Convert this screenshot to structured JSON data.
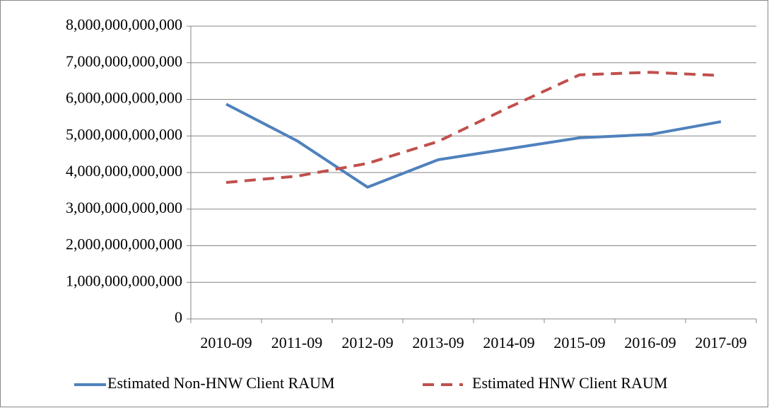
{
  "chart_data": {
    "type": "line",
    "categories": [
      "2010-09",
      "2011-09",
      "2012-09",
      "2013-09",
      "2014-09",
      "2015-09",
      "2016-09",
      "2017-09"
    ],
    "series": [
      {
        "name": "Estimated Non-HNW Client RAUM",
        "color": "#4f81bd",
        "dash": false,
        "values": [
          5870000000000,
          4870000000000,
          3600000000000,
          4350000000000,
          4650000000000,
          4950000000000,
          5040000000000,
          5390000000000
        ]
      },
      {
        "name": "Estimated HNW Client RAUM",
        "color": "#c0504d",
        "dash": true,
        "values": [
          3730000000000,
          3900000000000,
          4250000000000,
          4850000000000,
          5780000000000,
          6670000000000,
          6740000000000,
          6650000000000
        ]
      }
    ],
    "ylim": [
      0,
      8000000000000
    ],
    "yticks": [
      0,
      {
        "value": 1000000000000,
        "label": "1,000,000,000,000"
      },
      {
        "value": 2000000000000,
        "label": "2,000,000,000,000"
      },
      {
        "value": 3000000000000,
        "label": "3,000,000,000,000"
      },
      {
        "value": 4000000000000,
        "label": "4,000,000,000,000"
      },
      {
        "value": 5000000000000,
        "label": "5,000,000,000,000"
      },
      {
        "value": 6000000000000,
        "label": "6,000,000,000,000"
      },
      {
        "value": 7000000000000,
        "label": "7,000,000,000,000"
      },
      {
        "value": 8000000000000,
        "label": "8,000,000,000,000"
      }
    ],
    "grid": true,
    "legend": "bottom"
  }
}
